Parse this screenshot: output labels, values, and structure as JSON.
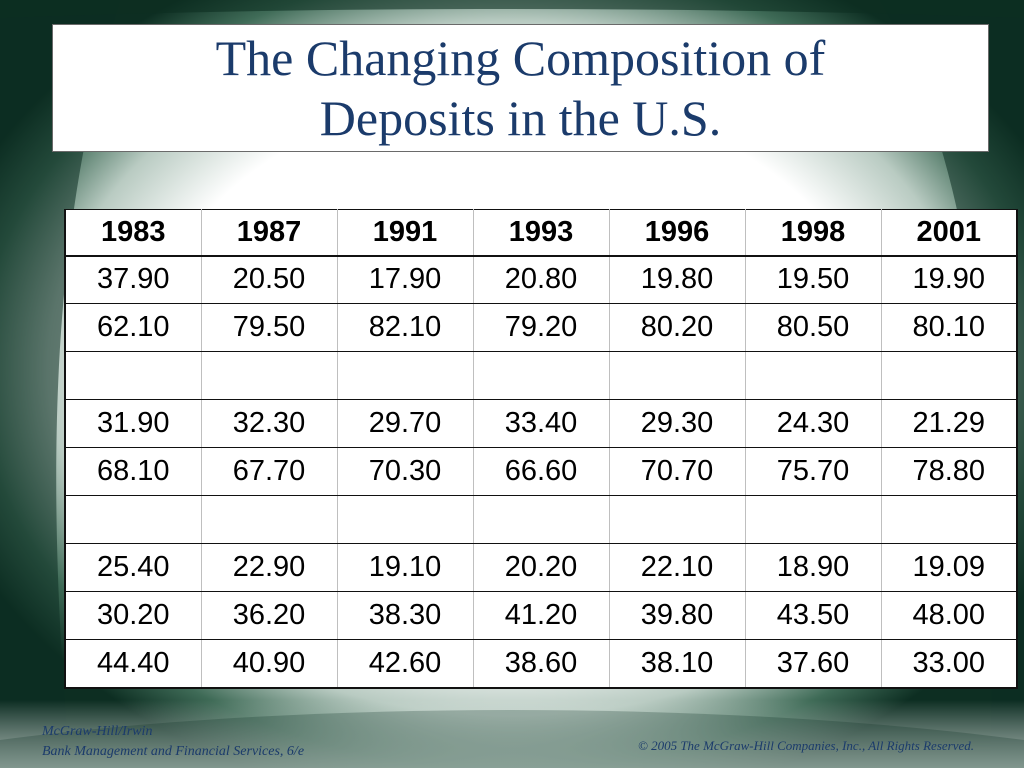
{
  "slide": {
    "title": "The Changing Composition of Deposits in the U.S.",
    "accent_color": "#1b3b6b",
    "background_colors": [
      "#0f3a2a",
      "#ffffff"
    ]
  },
  "table": {
    "headers": [
      "1983",
      "1987",
      "1991",
      "1993",
      "1996",
      "1998",
      "2001"
    ],
    "rows": [
      [
        "37.90",
        "20.50",
        "17.90",
        "20.80",
        "19.80",
        "19.50",
        "19.90"
      ],
      [
        "62.10",
        "79.50",
        "82.10",
        "79.20",
        "80.20",
        "80.50",
        "80.10"
      ],
      [
        "",
        "",
        "",
        "",
        "",
        "",
        ""
      ],
      [
        "31.90",
        "32.30",
        "29.70",
        "33.40",
        "29.30",
        "24.30",
        "21.29"
      ],
      [
        "68.10",
        "67.70",
        "70.30",
        "66.60",
        "70.70",
        "75.70",
        "78.80"
      ],
      [
        "",
        "",
        "",
        "",
        "",
        "",
        ""
      ],
      [
        "25.40",
        "22.90",
        "19.10",
        "20.20",
        "22.10",
        "18.90",
        "19.09"
      ],
      [
        "30.20",
        "36.20",
        "38.30",
        "41.20",
        "39.80",
        "43.50",
        "48.00"
      ],
      [
        "44.40",
        "40.90",
        "42.60",
        "38.60",
        "38.10",
        "37.60",
        "33.00"
      ]
    ]
  },
  "footer": {
    "publisher": "McGraw-Hill/Irwin",
    "book": "Bank Management and Financial Services, 6/e",
    "copyright": "© 2005  The McGraw-Hill Companies, Inc., All Rights Reserved."
  }
}
